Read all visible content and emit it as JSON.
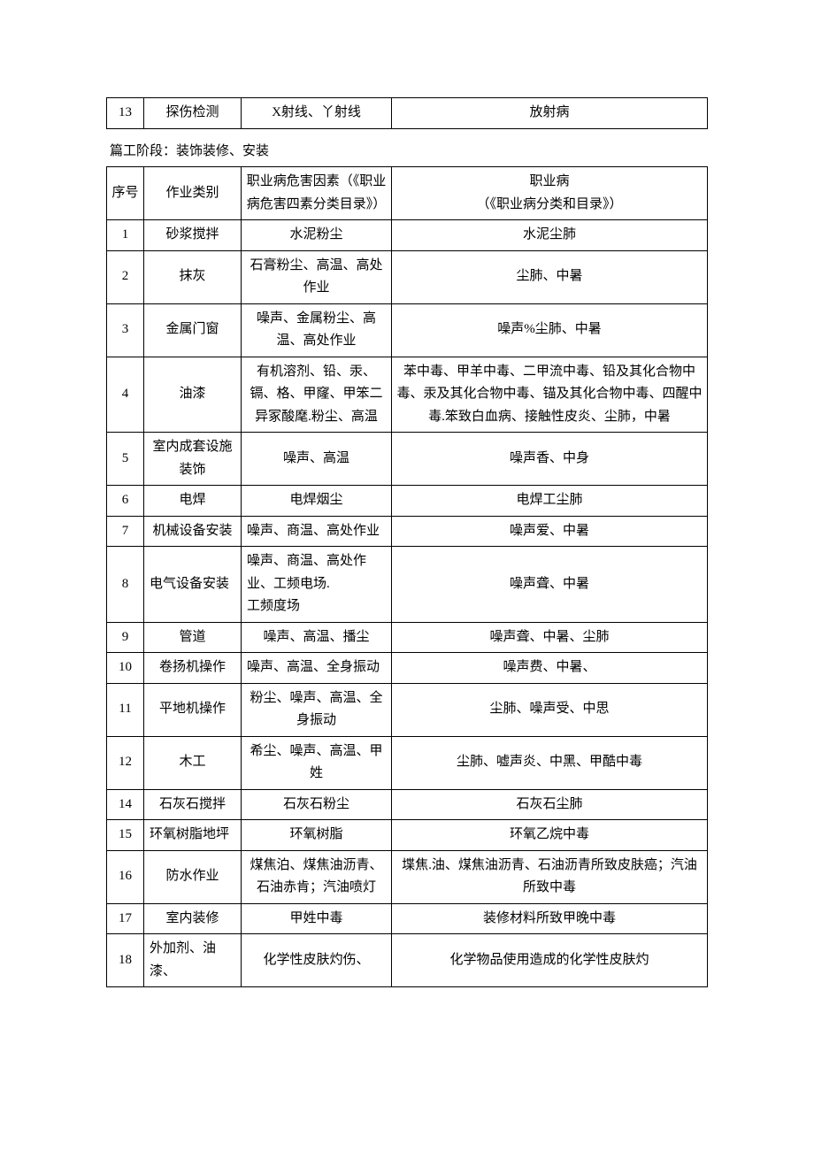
{
  "topTable": {
    "rows": [
      {
        "num": "13",
        "category": "探伤检测",
        "hazard": "X射线、丫射线",
        "disease": "放射病"
      }
    ],
    "columns": {
      "num_width": 42,
      "cat_width": 110,
      "haz_width": 170
    },
    "border_color": "#000000",
    "background_color": "#ffffff",
    "fontsize": 15
  },
  "sectionTitle": "篇工阶段：装饰装修、安装",
  "mainTable": {
    "header": {
      "num": "序号",
      "category": "作业类别",
      "hazard": "职业病危害因素（《职业病危害四素分类目录》）",
      "disease": "职业病\n（《职业病分类和目录》）"
    },
    "rows": [
      {
        "num": "1",
        "category": "砂浆搅拌",
        "hazard": "水泥粉尘",
        "disease": "水泥尘肺"
      },
      {
        "num": "2",
        "category": "抹灰",
        "hazard": "石膏粉尘、高温、高处作业",
        "disease": "尘肺、中暑"
      },
      {
        "num": "3",
        "category": "金属门窗",
        "hazard": "噪声、金属粉尘、高温、高处作业",
        "disease": "噪声%尘肺、中暑"
      },
      {
        "num": "4",
        "category": "油漆",
        "hazard": "有机溶剂、铅、汞、镉、格、甲窿、甲笨二异冢酸麾.粉尘、高温",
        "disease": "苯中毒、甲羊中毒、二甲流中毒、铅及其化合物中毒、汞及其化合物中毒、锚及其化合物中毒、四醒中毒.笨致白血病、接触性皮炎、尘肺，中暑"
      },
      {
        "num": "5",
        "category": "室内成套设施装饰",
        "hazard": "噪声、高温",
        "disease": "噪声香、中身"
      },
      {
        "num": "6",
        "category": "电焊",
        "hazard": "电焊烟尘",
        "disease": "电焊工尘肺"
      },
      {
        "num": "7",
        "category": "机械设备安装",
        "hazard": "噪声、商温、高处作业",
        "disease": "噪声爱、中暑"
      },
      {
        "num": "8",
        "category": "电气设备安装",
        "hazard": "噪声、商温、高处作业、工频电场.\n工频度场",
        "disease": "噪声聋、中暑"
      },
      {
        "num": "9",
        "category": "管道",
        "hazard": "噪声、高温、播尘",
        "disease": "噪声聋、中暑、尘肺"
      },
      {
        "num": "10",
        "category": "卷扬机操作",
        "hazard": "噪声、高温、全身振动",
        "disease": "噪声费、中暑、"
      },
      {
        "num": "11",
        "category": "平地机操作",
        "hazard": "粉尘、噪声、高温、全身振动",
        "disease": "尘肺、噪声受、中思"
      },
      {
        "num": "12",
        "category": "木工",
        "hazard": "希尘、噪声、高温、甲姓",
        "disease": "尘肺、嘘声炎、中黑、甲酷中毒"
      },
      {
        "num": "14",
        "category": "石灰石搅拌",
        "hazard": "石灰石粉尘",
        "disease": "石灰石尘肺"
      },
      {
        "num": "15",
        "category": "环氧树脂地坪",
        "hazard": "环氧树脂",
        "disease": "环氧乙烷中毒"
      },
      {
        "num": "16",
        "category": "防水作业",
        "hazard": "煤焦泊、煤焦油沥青、石油赤肯；汽油喷灯",
        "disease": "堞焦.油、煤焦油沥青、石油沥青所致皮肤癌；汽油所致中毒"
      },
      {
        "num": "17",
        "category": "室内装修",
        "hazard": "甲姓中毒",
        "disease": "装修材料所致甲晚中毒"
      },
      {
        "num": "18",
        "category": "外加剂、油漆、",
        "hazard": "化学性皮肤灼伤、",
        "disease": "化学物品使用造成的化学性皮肤灼"
      }
    ],
    "columns": {
      "num_width": 42,
      "cat_width": 110,
      "haz_width": 170
    },
    "border_color": "#000000",
    "background_color": "#ffffff",
    "fontsize": 15,
    "leftAlignHazard": [
      7,
      8,
      10
    ],
    "leftAlignCategory": [
      8,
      15,
      18
    ]
  }
}
